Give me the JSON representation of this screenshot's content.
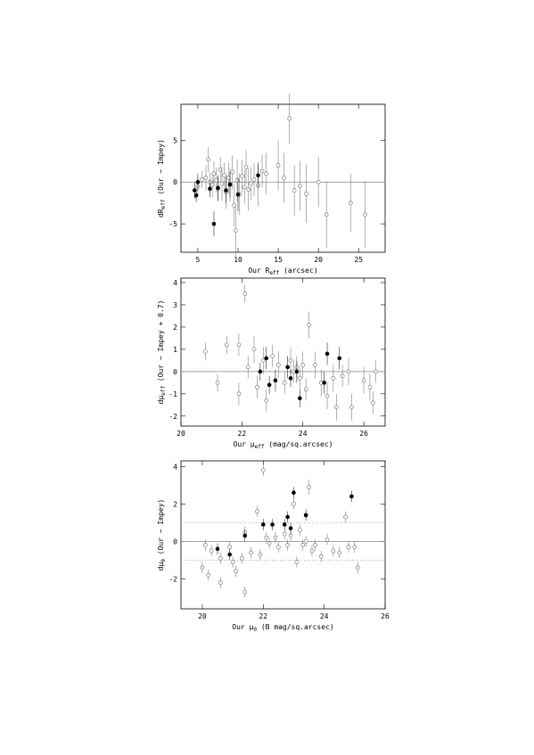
{
  "chart_data": [
    {
      "type": "scatter",
      "xlabel": [
        {
          "text": "Our R"
        },
        {
          "sub": "eff"
        },
        {
          "text": " (arcsec)"
        }
      ],
      "ylabel": [
        {
          "text": "dR"
        },
        {
          "sub": "eff"
        },
        {
          "text": " (Our − Impey)"
        }
      ],
      "xlim": [
        2.9,
        28.3
      ],
      "ylim": [
        -8.4,
        9.3
      ],
      "xticks": [
        5,
        10,
        15,
        20,
        25
      ],
      "yticks": [
        -5,
        0,
        5
      ],
      "hlines": [
        0
      ],
      "series": [
        {
          "marker": "open",
          "color": "#666666",
          "x": [
            5,
            5.5,
            6,
            6.3,
            6.5,
            6.8,
            7,
            7.3,
            7.5,
            7.8,
            8,
            8.3,
            8.5,
            8.8,
            9,
            9.3,
            9.5,
            9.7,
            9.9,
            10.2,
            10.5,
            10.8,
            11,
            11.3,
            11.6,
            12,
            12.5,
            13,
            13.5,
            15,
            15.7,
            16.4,
            17,
            17.7,
            18.5,
            20,
            21,
            24,
            25.8
          ],
          "y": [
            -0.5,
            0.3,
            0.5,
            2.7,
            0,
            -0.3,
            1,
            0.2,
            -0.8,
            1.5,
            -0.2,
            0.8,
            -1.2,
            0.5,
            -0.3,
            1.2,
            -2.8,
            -5.8,
            0.2,
            -1.5,
            0.7,
            -0.6,
            1.8,
            -0.9,
            -0.2,
            0.3,
            -0.4,
            1.3,
            1,
            2,
            0.5,
            7.6,
            -1,
            -0.5,
            -1.4,
            0,
            -3.9,
            -2.5,
            -3.9
          ],
          "yerr": [
            1,
            1,
            1.5,
            1.5,
            1.2,
            1.5,
            1.5,
            1.5,
            1.5,
            1.5,
            2,
            1.5,
            2,
            1.8,
            2,
            2,
            2.5,
            3,
            2.5,
            2.5,
            2,
            2,
            2,
            2.5,
            2,
            2,
            2.5,
            2,
            2.5,
            3,
            3,
            3,
            3,
            3,
            3.5,
            3,
            4,
            3.5,
            4
          ]
        },
        {
          "marker": "filled",
          "color": "#000000",
          "x": [
            4.6,
            4.8,
            5,
            6.5,
            7,
            7.5,
            8.5,
            9,
            10,
            12.5
          ],
          "y": [
            -1,
            -1.6,
            0,
            -0.8,
            -5,
            -0.7,
            -1,
            -0.3,
            -1.5,
            0.8
          ],
          "yerr": [
            1,
            0.8,
            1,
            1,
            1.5,
            1.5,
            1.5,
            1.5,
            2,
            1.5
          ]
        }
      ]
    },
    {
      "type": "scatter",
      "xlabel": [
        {
          "text": "Our μ"
        },
        {
          "sub": "eff"
        },
        {
          "text": " (mag/sq.arcsec)"
        }
      ],
      "ylabel": [
        {
          "text": "dμ"
        },
        {
          "sub": "eff"
        },
        {
          "text": " (Our − Impey + 0.7)"
        }
      ],
      "xlim": [
        20,
        26.7
      ],
      "ylim": [
        -2.45,
        4.2
      ],
      "xticks": [
        20,
        22,
        24,
        26
      ],
      "yticks": [
        -2,
        -1,
        0,
        1,
        2,
        3,
        4
      ],
      "hlines": [
        0
      ],
      "series": [
        {
          "marker": "open",
          "color": "#666666",
          "x": [
            20.8,
            21.2,
            21.5,
            21.9,
            21.9,
            22.1,
            22.2,
            22.4,
            22.5,
            22.7,
            22.8,
            23,
            23.2,
            23.4,
            23.6,
            23.7,
            23.8,
            23.9,
            24,
            24.1,
            24.2,
            24.4,
            24.6,
            24.8,
            25,
            25.1,
            25.3,
            25.5,
            25.6,
            26,
            26.2,
            26.4,
            26.3
          ],
          "y": [
            0.9,
            -0.5,
            1.2,
            1.2,
            -1,
            3.5,
            0.2,
            1,
            -0.7,
            0.5,
            -1.3,
            0.7,
            0.3,
            -0.5,
            0.5,
            0,
            0.2,
            -0.3,
            0.3,
            -0.8,
            2.1,
            0.3,
            -0.5,
            -1.1,
            -0.3,
            -1.6,
            -0.2,
            0,
            -1.6,
            -0.4,
            -0.7,
            0,
            -1.4
          ],
          "yerr": [
            0.4,
            0.4,
            0.4,
            0.5,
            0.5,
            0.4,
            0.5,
            0.6,
            0.5,
            0.6,
            0.5,
            0.5,
            0.6,
            0.5,
            0.6,
            0.5,
            0.5,
            0.5,
            0.6,
            0.5,
            0.6,
            0.6,
            0.6,
            0.6,
            0.6,
            0.6,
            0.5,
            0.6,
            0.6,
            0.6,
            0.6,
            0.5,
            0.5
          ]
        },
        {
          "marker": "filled",
          "color": "#000000",
          "x": [
            22.6,
            22.8,
            22.9,
            23.1,
            23.5,
            23.6,
            23.8,
            23.9,
            24.7,
            24.8,
            25.2
          ],
          "y": [
            0,
            0.6,
            -0.6,
            -0.4,
            0.2,
            -0.3,
            0,
            -1.2,
            -0.5,
            0.8,
            0.6
          ],
          "yerr": [
            0.4,
            0.5,
            0.4,
            0.5,
            0.5,
            0.4,
            0.5,
            0.4,
            0.5,
            0.5,
            0.5
          ]
        }
      ]
    },
    {
      "type": "scatter",
      "xlabel": [
        {
          "text": "Our μ"
        },
        {
          "sub": "0"
        },
        {
          "text": " (B mag/sq.arcsec)"
        }
      ],
      "ylabel": [
        {
          "text": "dμ"
        },
        {
          "sub": "0"
        },
        {
          "text": " (Our − Impey)"
        }
      ],
      "xlim": [
        19.3,
        26
      ],
      "ylim": [
        -3.6,
        4.3
      ],
      "xticks": [
        20,
        22,
        24,
        26
      ],
      "yticks": [
        -2,
        0,
        2,
        4
      ],
      "hlines": [
        0
      ],
      "dotted_lines": [
        -1,
        1
      ],
      "series": [
        {
          "marker": "open",
          "color": "#666666",
          "x": [
            20,
            20.1,
            20.2,
            20.3,
            20.6,
            20.6,
            20.9,
            21,
            21.1,
            21.3,
            21.4,
            21.4,
            21.6,
            21.8,
            21.9,
            22,
            22.1,
            22.2,
            22.4,
            22.5,
            22.7,
            22.8,
            22.9,
            23,
            23.1,
            23.2,
            23.3,
            23.4,
            23.5,
            23.6,
            23.7,
            23.9,
            24.1,
            24.3,
            24.5,
            24.7,
            24.8,
            25,
            25.1
          ],
          "y": [
            -1.4,
            -0.2,
            -1.8,
            -0.5,
            -0.9,
            -2.2,
            -0.3,
            -1.1,
            -1.6,
            -0.9,
            -2.7,
            0.5,
            -0.6,
            1.6,
            -0.7,
            3.8,
            0.2,
            -0.1,
            0.2,
            -0.3,
            0.4,
            -0.2,
            0.3,
            2,
            -1.1,
            0.6,
            -0.2,
            0,
            2.9,
            -0.5,
            -0.2,
            -0.8,
            0.1,
            -0.5,
            -0.6,
            1.3,
            -0.3,
            -0.3,
            -1.4
          ],
          "yerr": [
            0.3,
            0.3,
            0.3,
            0.3,
            0.3,
            0.3,
            0.3,
            0.3,
            0.3,
            0.3,
            0.3,
            0.3,
            0.3,
            0.3,
            0.3,
            0.3,
            0.3,
            0.3,
            0.3,
            0.3,
            0.3,
            0.3,
            0.3,
            0.3,
            0.3,
            0.3,
            0.3,
            0.3,
            0.4,
            0.3,
            0.3,
            0.3,
            0.3,
            0.3,
            0.3,
            0.3,
            0.3,
            0.3,
            0.3
          ]
        },
        {
          "marker": "filled",
          "color": "#000000",
          "x": [
            20.5,
            20.9,
            21.4,
            22,
            22.3,
            22.7,
            22.8,
            22.9,
            23,
            23.4,
            24.9
          ],
          "y": [
            -0.4,
            -0.7,
            0.3,
            0.9,
            0.9,
            0.9,
            1.3,
            0.7,
            2.6,
            1.4,
            2.4
          ],
          "yerr": [
            0.3,
            0.3,
            0.3,
            0.3,
            0.3,
            0.3,
            0.3,
            0.3,
            0.3,
            0.3,
            0.3
          ]
        }
      ]
    }
  ]
}
